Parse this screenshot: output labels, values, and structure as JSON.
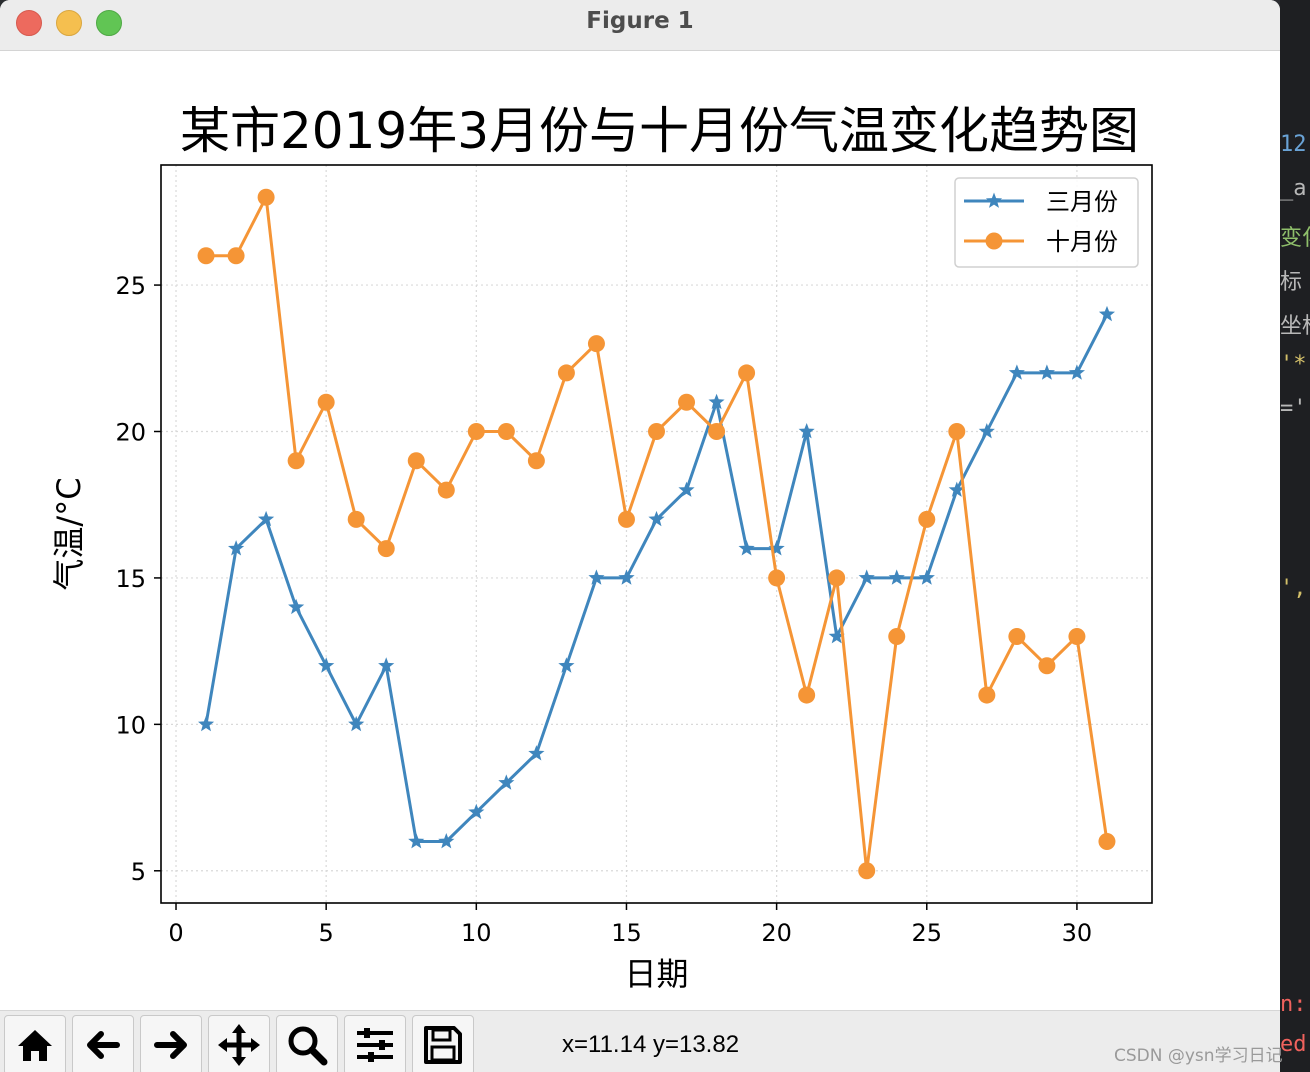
{
  "window": {
    "title": "Figure 1"
  },
  "toolbar": {
    "buttons": [
      {
        "icon": "home-icon"
      },
      {
        "icon": "back-arrow-icon"
      },
      {
        "icon": "forward-arrow-icon"
      },
      {
        "icon": "pan-move-icon"
      },
      {
        "icon": "zoom-magnifier-icon"
      },
      {
        "icon": "configure-subplots-icon"
      },
      {
        "icon": "save-disk-icon"
      }
    ],
    "coords": "x=11.14 y=13.82"
  },
  "watermark": "CSDN @ysn学习日记",
  "editor_fragments": [
    "12",
    "_a",
    "变化",
    "标",
    "坐标",
    "'*",
    "='",
    "',",
    "n:",
    "ed"
  ],
  "colors": {
    "series1": "#3f86bd",
    "series2": "#f59536",
    "grid": "#d9d9d9"
  },
  "chart_data": {
    "type": "line",
    "title": "某市2019年3月份与十月份气温变化趋势图",
    "xlabel": "日期",
    "ylabel": "气温/°C",
    "xlim": [
      -0.5,
      32.5
    ],
    "ylim": [
      3.9,
      29.1
    ],
    "xticks": [
      0,
      5,
      10,
      15,
      20,
      25,
      30
    ],
    "yticks": [
      5,
      10,
      15,
      20,
      25
    ],
    "grid": true,
    "legend": "top-right",
    "x": [
      1,
      2,
      3,
      4,
      5,
      6,
      7,
      8,
      9,
      10,
      11,
      12,
      13,
      14,
      15,
      16,
      17,
      18,
      19,
      20,
      21,
      22,
      23,
      24,
      25,
      26,
      27,
      28,
      29,
      30,
      31
    ],
    "series": [
      {
        "name": "三月份",
        "marker": "star",
        "color": "#3f86bd",
        "values": [
          10,
          16,
          17,
          14,
          12,
          10,
          12,
          6,
          6,
          7,
          8,
          9,
          12,
          15,
          15,
          17,
          18,
          21,
          16,
          16,
          20,
          13,
          15,
          15,
          15,
          18,
          20,
          22,
          22,
          22,
          24
        ]
      },
      {
        "name": "十月份",
        "marker": "circle",
        "color": "#f59536",
        "values": [
          26,
          26,
          28,
          19,
          21,
          17,
          16,
          19,
          18,
          20,
          20,
          19,
          22,
          23,
          17,
          20,
          21,
          20,
          22,
          15,
          11,
          15,
          5,
          13,
          17,
          20,
          11,
          13,
          12,
          13,
          6
        ]
      }
    ]
  }
}
